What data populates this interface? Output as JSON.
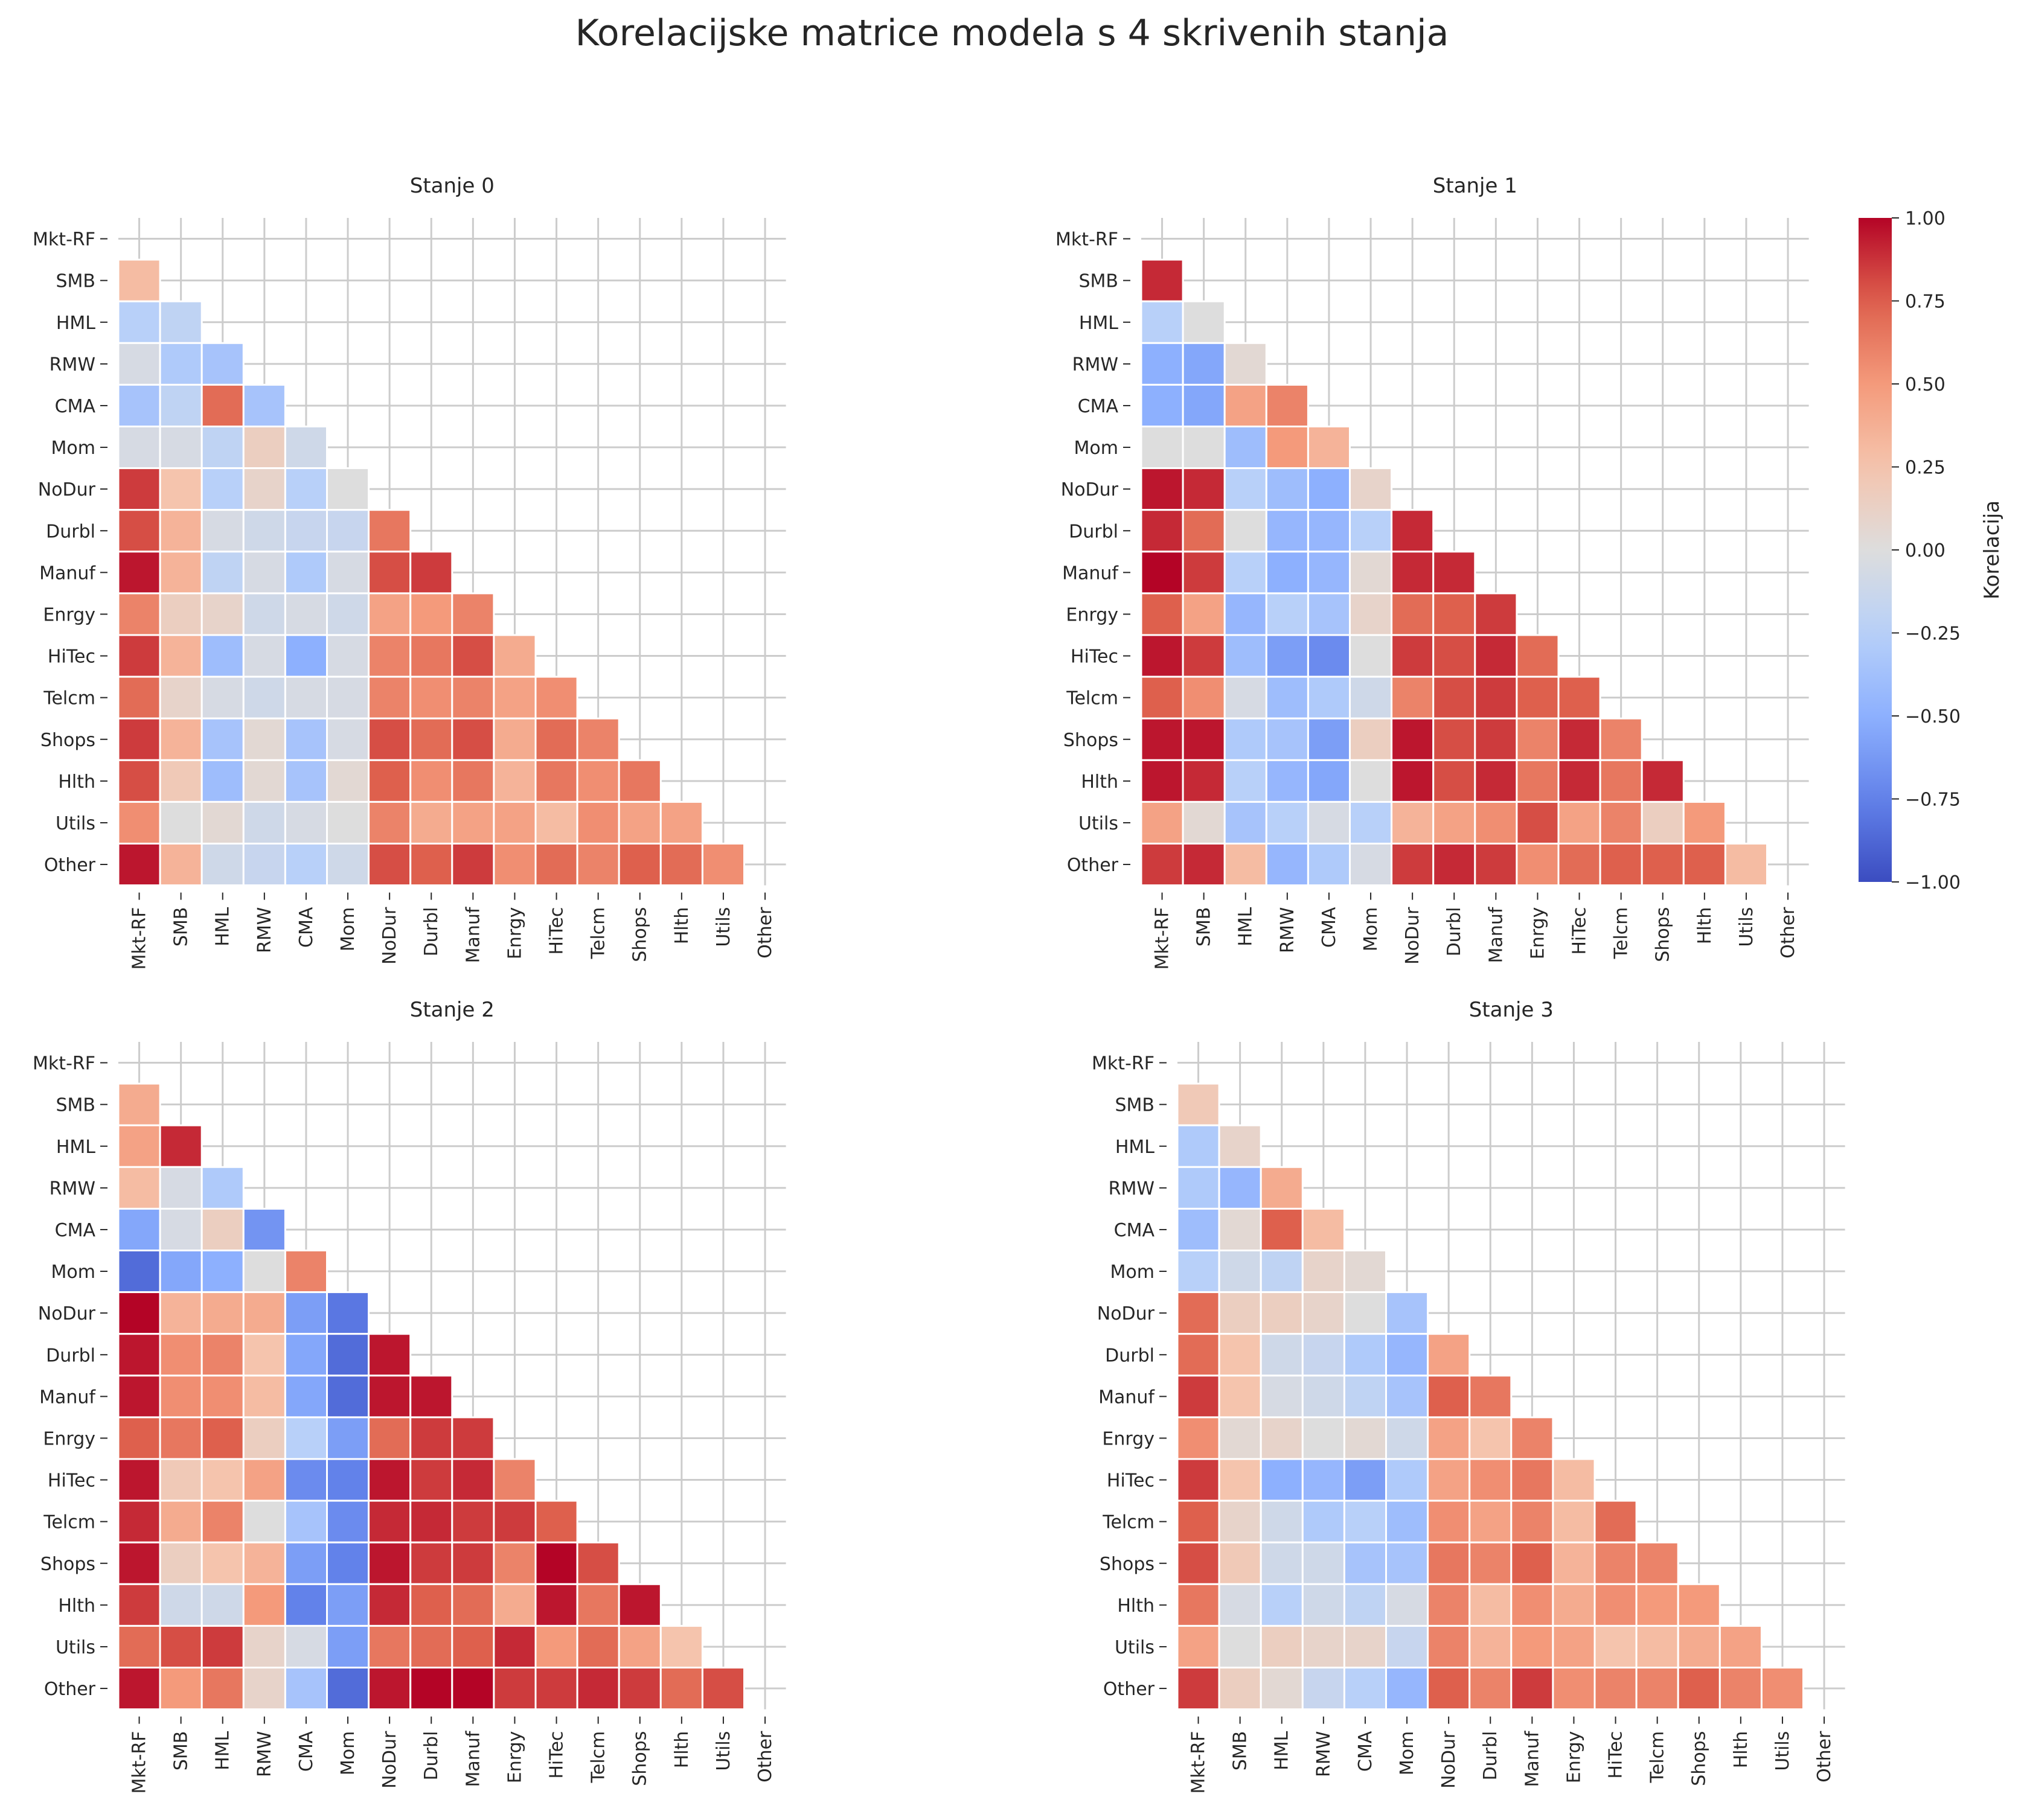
{
  "title": "Korelacijske matrice modela s 4 skrivenih stanja",
  "chart_data": {
    "type": "heatmap",
    "variables": [
      "Mkt-RF",
      "SMB",
      "HML",
      "RMW",
      "CMA",
      "Mom",
      "NoDur",
      "Durbl",
      "Manuf",
      "Enrgy",
      "HiTec",
      "Telcm",
      "Shops",
      "Hlth",
      "Utils",
      "Other"
    ],
    "mask": "upper triangle including diagonal",
    "colormap": "coolwarm",
    "vmin": -1,
    "vmax": 1,
    "colorbar": {
      "label": "Korelacija",
      "ticks": [
        1.0,
        0.75,
        0.5,
        0.25,
        0.0,
        -0.25,
        -0.5,
        -0.75,
        -1.0
      ],
      "tick_labels": [
        "1.00",
        "0.75",
        "0.50",
        "0.25",
        "0.00",
        "−0.25",
        "−0.50",
        "−0.75",
        "−1.00"
      ]
    },
    "panels": [
      {
        "title": "Stanje 0",
        "lower": [
          [],
          [
            0.3
          ],
          [
            -0.25,
            -0.2
          ],
          [
            -0.05,
            -0.3,
            -0.35
          ],
          [
            -0.35,
            -0.2,
            0.7,
            -0.35
          ],
          [
            -0.05,
            -0.05,
            -0.2,
            0.15,
            -0.1
          ],
          [
            0.85,
            0.25,
            -0.25,
            0.1,
            -0.25,
            0.0
          ],
          [
            0.8,
            0.35,
            -0.05,
            -0.1,
            -0.15,
            -0.15,
            0.65
          ],
          [
            0.95,
            0.35,
            -0.2,
            -0.05,
            -0.3,
            -0.05,
            0.8,
            0.85
          ],
          [
            0.6,
            0.15,
            0.1,
            -0.1,
            -0.05,
            -0.1,
            0.45,
            0.5,
            0.6
          ],
          [
            0.85,
            0.35,
            -0.4,
            -0.05,
            -0.5,
            -0.05,
            0.6,
            0.65,
            0.8,
            0.4
          ],
          [
            0.7,
            0.1,
            -0.05,
            -0.1,
            -0.05,
            -0.05,
            0.6,
            0.55,
            0.6,
            0.45,
            0.55
          ],
          [
            0.85,
            0.35,
            -0.35,
            0.05,
            -0.35,
            -0.05,
            0.8,
            0.7,
            0.8,
            0.4,
            0.7,
            0.6
          ],
          [
            0.8,
            0.2,
            -0.4,
            0.05,
            -0.35,
            0.05,
            0.75,
            0.55,
            0.65,
            0.35,
            0.65,
            0.55,
            0.65
          ],
          [
            0.55,
            0.0,
            0.05,
            -0.1,
            -0.05,
            0.0,
            0.6,
            0.4,
            0.45,
            0.45,
            0.3,
            0.55,
            0.45,
            0.45
          ],
          [
            0.95,
            0.35,
            -0.1,
            -0.15,
            -0.25,
            -0.1,
            0.8,
            0.75,
            0.85,
            0.55,
            0.7,
            0.6,
            0.75,
            0.7,
            0.55
          ]
        ]
      },
      {
        "title": "Stanje 1",
        "lower": [
          [],
          [
            0.9
          ],
          [
            -0.25,
            0.0
          ],
          [
            -0.5,
            -0.55,
            0.05
          ],
          [
            -0.5,
            -0.55,
            0.45,
            0.6
          ],
          [
            0.0,
            0.0,
            -0.4,
            0.5,
            0.35
          ],
          [
            0.95,
            0.9,
            -0.25,
            -0.4,
            -0.5,
            0.1
          ],
          [
            0.9,
            0.7,
            0.0,
            -0.45,
            -0.45,
            -0.25,
            0.9
          ],
          [
            1.0,
            0.85,
            -0.25,
            -0.5,
            -0.45,
            0.05,
            0.9,
            0.9
          ],
          [
            0.75,
            0.45,
            -0.45,
            -0.25,
            -0.35,
            0.1,
            0.7,
            0.75,
            0.85
          ],
          [
            0.95,
            0.85,
            -0.4,
            -0.6,
            -0.7,
            0.0,
            0.85,
            0.8,
            0.9,
            0.7
          ],
          [
            0.75,
            0.55,
            -0.05,
            -0.4,
            -0.3,
            -0.1,
            0.6,
            0.8,
            0.85,
            0.75,
            0.75
          ],
          [
            0.95,
            0.95,
            -0.3,
            -0.35,
            -0.6,
            0.15,
            0.95,
            0.8,
            0.85,
            0.6,
            0.9,
            0.6
          ],
          [
            0.95,
            0.9,
            -0.25,
            -0.45,
            -0.55,
            0.0,
            0.95,
            0.8,
            0.9,
            0.65,
            0.9,
            0.65,
            0.9
          ],
          [
            0.45,
            0.05,
            -0.35,
            -0.25,
            -0.05,
            -0.25,
            0.35,
            0.45,
            0.55,
            0.8,
            0.45,
            0.6,
            0.15,
            0.5
          ],
          [
            0.85,
            0.9,
            0.3,
            -0.45,
            -0.3,
            -0.05,
            0.85,
            0.9,
            0.85,
            0.55,
            0.7,
            0.75,
            0.75,
            0.75,
            0.3
          ]
        ]
      },
      {
        "title": "Stanje 2",
        "lower": [
          [],
          [
            0.4
          ],
          [
            0.45,
            0.9
          ],
          [
            0.3,
            -0.05,
            -0.3
          ],
          [
            -0.55,
            -0.05,
            0.15,
            -0.65
          ],
          [
            -0.85,
            -0.55,
            -0.5,
            0.0,
            0.6
          ],
          [
            1.0,
            0.35,
            0.4,
            0.4,
            -0.6,
            -0.8
          ],
          [
            0.95,
            0.55,
            0.6,
            0.25,
            -0.55,
            -0.85,
            0.95
          ],
          [
            0.95,
            0.55,
            0.55,
            0.3,
            -0.55,
            -0.85,
            0.95,
            0.95
          ],
          [
            0.75,
            0.65,
            0.75,
            0.15,
            -0.25,
            -0.6,
            0.7,
            0.85,
            0.85
          ],
          [
            0.95,
            0.2,
            0.25,
            0.45,
            -0.7,
            -0.75,
            0.95,
            0.85,
            0.9,
            0.6
          ],
          [
            0.9,
            0.4,
            0.6,
            0.0,
            -0.35,
            -0.7,
            0.9,
            0.9,
            0.85,
            0.85,
            0.75
          ],
          [
            0.95,
            0.15,
            0.25,
            0.35,
            -0.6,
            -0.75,
            0.95,
            0.85,
            0.85,
            0.6,
            1.0,
            0.8
          ],
          [
            0.85,
            -0.1,
            -0.1,
            0.5,
            -0.75,
            -0.6,
            0.9,
            0.75,
            0.7,
            0.4,
            0.95,
            0.65,
            0.95
          ],
          [
            0.7,
            0.8,
            0.85,
            0.1,
            -0.05,
            -0.6,
            0.65,
            0.7,
            0.75,
            0.9,
            0.5,
            0.7,
            0.45,
            0.25
          ],
          [
            0.95,
            0.5,
            0.65,
            0.1,
            -0.35,
            -0.85,
            0.95,
            1.0,
            1.0,
            0.85,
            0.85,
            0.9,
            0.85,
            0.7,
            0.8
          ]
        ]
      },
      {
        "title": "Stanje 3",
        "lower": [
          [],
          [
            0.2
          ],
          [
            -0.3,
            0.1
          ],
          [
            -0.3,
            -0.45,
            0.4
          ],
          [
            -0.4,
            0.05,
            0.75,
            0.3
          ],
          [
            -0.25,
            -0.1,
            -0.2,
            0.1,
            0.05
          ],
          [
            0.7,
            0.15,
            0.15,
            0.1,
            0.0,
            -0.35
          ],
          [
            0.7,
            0.25,
            -0.1,
            -0.15,
            -0.3,
            -0.45,
            0.45
          ],
          [
            0.85,
            0.25,
            -0.05,
            -0.1,
            -0.2,
            -0.35,
            0.75,
            0.65
          ],
          [
            0.55,
            0.05,
            0.1,
            0.0,
            0.05,
            -0.1,
            0.45,
            0.25,
            0.6
          ],
          [
            0.85,
            0.25,
            -0.5,
            -0.45,
            -0.6,
            -0.3,
            0.45,
            0.55,
            0.65,
            0.3
          ],
          [
            0.75,
            0.1,
            -0.1,
            -0.3,
            -0.25,
            -0.4,
            0.55,
            0.45,
            0.6,
            0.3,
            0.7
          ],
          [
            0.8,
            0.2,
            -0.1,
            -0.1,
            -0.35,
            -0.35,
            0.65,
            0.6,
            0.75,
            0.35,
            0.6,
            0.6
          ],
          [
            0.65,
            -0.05,
            -0.25,
            -0.1,
            -0.2,
            -0.05,
            0.6,
            0.3,
            0.55,
            0.4,
            0.55,
            0.5,
            0.5
          ],
          [
            0.45,
            0.0,
            0.15,
            0.1,
            0.1,
            -0.15,
            0.6,
            0.35,
            0.5,
            0.45,
            0.25,
            0.3,
            0.4,
            0.45
          ],
          [
            0.85,
            0.15,
            0.05,
            -0.15,
            -0.25,
            -0.45,
            0.75,
            0.6,
            0.85,
            0.55,
            0.6,
            0.6,
            0.75,
            0.6,
            0.55
          ]
        ]
      }
    ]
  }
}
